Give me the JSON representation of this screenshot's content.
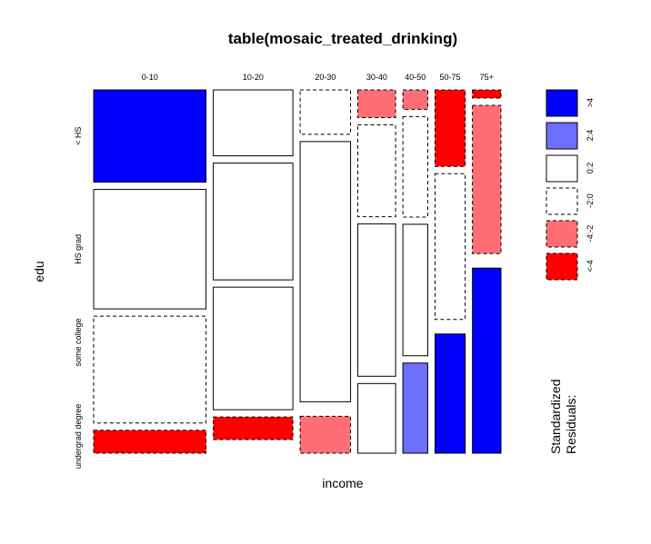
{
  "chart_data": {
    "type": "mosaic",
    "title": "table(mosaic_treated_drinking)",
    "xlabel": "income",
    "ylabel": "edu",
    "income_levels": [
      "0-10",
      "10-20",
      "20-30",
      "30-40",
      "40-50",
      "50-75",
      "75+"
    ],
    "edu_levels": [
      "< HS",
      "HS grad",
      "some college",
      "undergrad degree"
    ],
    "column_shares": [
      0.339,
      0.24,
      0.152,
      0.114,
      0.075,
      0.091,
      0.086
    ],
    "cell_shares": [
      [
        0.27,
        0.35,
        0.313,
        0.067
      ],
      [
        0.193,
        0.342,
        0.359,
        0.066
      ],
      [
        0.13,
        0.762,
        0,
        0.108
      ],
      [
        0.081,
        0.269,
        0.446,
        0.204
      ],
      [
        0.057,
        0.294,
        0.385,
        0.264
      ],
      [
        0.224,
        0.427,
        0,
        0.349
      ],
      [
        0.024,
        0.434,
        0,
        0.542
      ]
    ],
    "residual_classes": [
      [
        ">4",
        "0:2",
        "-2:0",
        "<-4"
      ],
      [
        "0:2",
        "0:2",
        "0:2",
        "<-4"
      ],
      [
        "-2:0",
        "0:2",
        "0:2",
        "-4:-2"
      ],
      [
        "-4:-2",
        "-2:0",
        "0:2",
        "0:2"
      ],
      [
        "-4:-2",
        "-2:0",
        "0:2",
        "2:4"
      ],
      [
        "<-4",
        "-2:0",
        "0:2",
        ">4"
      ],
      [
        "<-4",
        "-4:-2",
        "-2:0",
        ">4"
      ]
    ],
    "legend": {
      "title_lines": [
        "Standardized",
        "Residuals:"
      ],
      "entries": [
        {
          "label": ">4",
          "fill": "#0000ff",
          "dashed": false
        },
        {
          "label": "2:4",
          "fill": "#6e6eff",
          "dashed": false
        },
        {
          "label": "0:2",
          "fill": "#ffffff",
          "dashed": false
        },
        {
          "label": "-2:0",
          "fill": "#ffffff",
          "dashed": true
        },
        {
          "label": "-4:-2",
          "fill": "#ff6e75",
          "dashed": true
        },
        {
          "label": "<-4",
          "fill": "#ff0000",
          "dashed": true
        }
      ]
    }
  }
}
